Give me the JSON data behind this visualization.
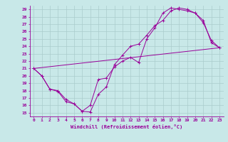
{
  "xlabel": "Windchill (Refroidissement éolien,°C)",
  "ylabel": "",
  "xlim": [
    -0.5,
    23.5
  ],
  "ylim": [
    14.5,
    29.5
  ],
  "xticks": [
    0,
    1,
    2,
    3,
    4,
    5,
    6,
    7,
    8,
    9,
    10,
    11,
    12,
    13,
    14,
    15,
    16,
    17,
    18,
    19,
    20,
    21,
    22,
    23
  ],
  "yticks": [
    15,
    16,
    17,
    18,
    19,
    20,
    21,
    22,
    23,
    24,
    25,
    26,
    27,
    28,
    29
  ],
  "bg_color": "#c8e8e8",
  "line_color": "#990099",
  "grid_color": "#aacccc",
  "line1_x": [
    0,
    1,
    2,
    3,
    4,
    5,
    6,
    7,
    8,
    9,
    10,
    11,
    12,
    13,
    14,
    15,
    16,
    17,
    18,
    19,
    20,
    21,
    22,
    23
  ],
  "line1_y": [
    21.0,
    20.0,
    18.2,
    17.9,
    16.5,
    16.2,
    15.2,
    16.0,
    19.5,
    19.7,
    21.2,
    22.0,
    22.5,
    21.8,
    25.0,
    26.5,
    28.5,
    29.2,
    29.0,
    28.8,
    28.5,
    27.5,
    24.5,
    23.8
  ],
  "line2_x": [
    0,
    1,
    2,
    3,
    4,
    5,
    6,
    7,
    8,
    9,
    10,
    11,
    12,
    13,
    14,
    15,
    16,
    17,
    18,
    19,
    20,
    21,
    22,
    23
  ],
  "line2_y": [
    21.0,
    20.0,
    18.2,
    18.0,
    16.8,
    16.2,
    15.2,
    15.1,
    17.5,
    18.5,
    21.5,
    22.8,
    24.0,
    24.3,
    25.5,
    26.8,
    27.5,
    28.8,
    29.2,
    29.0,
    28.5,
    27.2,
    24.8,
    23.8
  ],
  "line3_x": [
    0,
    23
  ],
  "line3_y": [
    21.0,
    23.8
  ]
}
